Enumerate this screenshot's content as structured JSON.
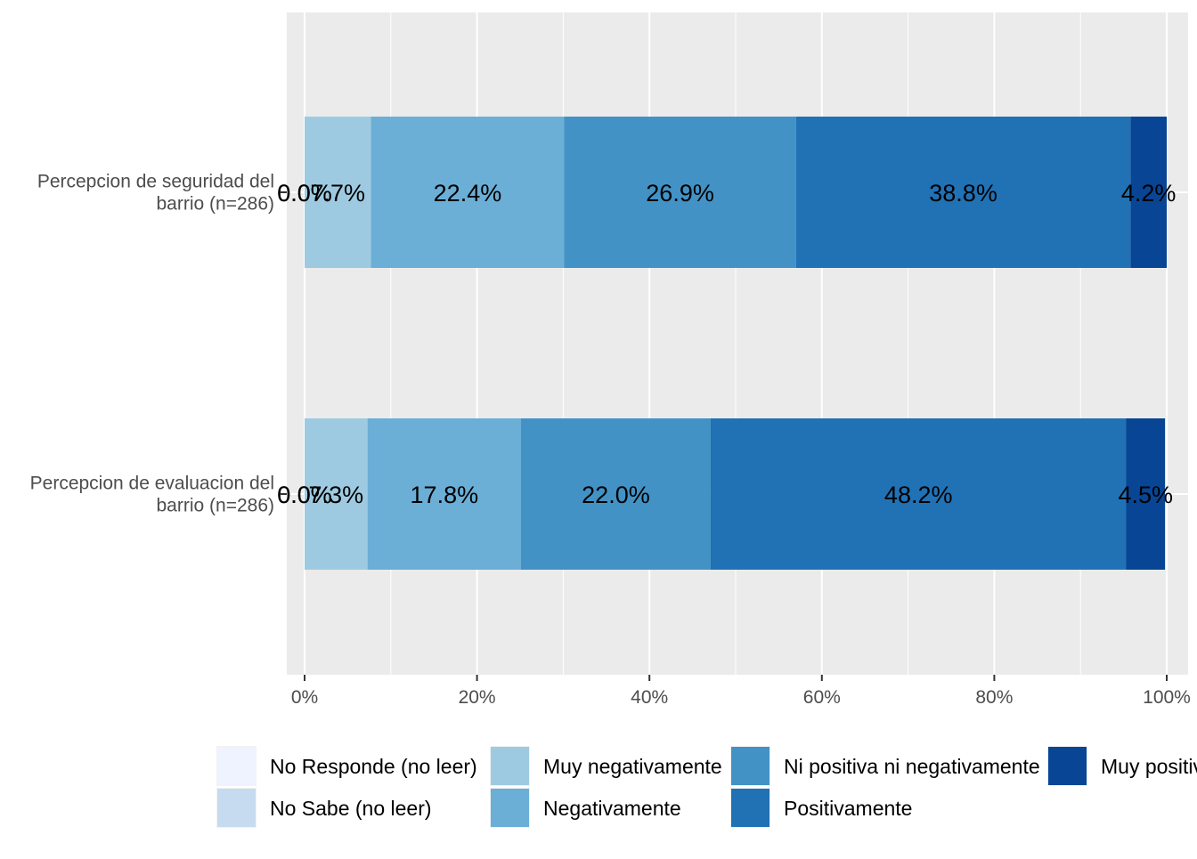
{
  "chart_data": {
    "type": "bar",
    "orientation": "horizontal",
    "stacked": true,
    "categories": [
      [
        "Percepcion de seguridad del",
        "barrio (n=286)"
      ],
      [
        "Percepcion de evaluacion del",
        "barrio (n=286)"
      ]
    ],
    "series": [
      {
        "name": "No Responde (no leer)",
        "color": "#eff3ff",
        "values": [
          0.0,
          0.0
        ],
        "labels": [
          "0.0%",
          "0.0%"
        ]
      },
      {
        "name": "No Sabe (no leer)",
        "color": "#c6dbef",
        "values": [
          0.0,
          0.0
        ],
        "labels": [
          "0.0%",
          "0.0%"
        ]
      },
      {
        "name": "Muy negativamente",
        "color": "#9ecae1",
        "values": [
          7.7,
          7.3
        ],
        "labels": [
          "7.7%",
          "7.3%"
        ]
      },
      {
        "name": "Negativamente",
        "color": "#6baed6",
        "values": [
          22.4,
          17.8
        ],
        "labels": [
          "22.4%",
          "17.8%"
        ]
      },
      {
        "name": "Ni positiva ni negativamente",
        "color": "#4292c6",
        "values": [
          26.9,
          22.0
        ],
        "labels": [
          "26.9%",
          "22.0%"
        ]
      },
      {
        "name": "Positivamente",
        "color": "#2171b5",
        "values": [
          38.8,
          48.2
        ],
        "labels": [
          "38.8%",
          "48.2%"
        ]
      },
      {
        "name": "Muy positivamente",
        "color": "#084594",
        "values": [
          4.2,
          4.5
        ],
        "labels": [
          "4.2%",
          "4.5%"
        ]
      }
    ],
    "x_ticks": [
      "0%",
      "20%",
      "40%",
      "60%",
      "80%",
      "100%"
    ],
    "xlim": [
      0,
      100
    ],
    "grid": true,
    "legend_position": "bottom",
    "title": "",
    "xlabel": "",
    "ylabel": ""
  }
}
